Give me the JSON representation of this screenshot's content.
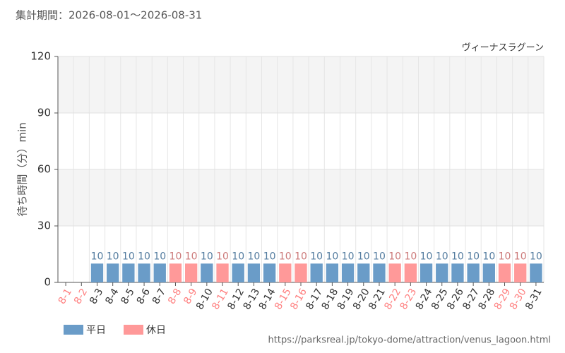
{
  "chart_data": {
    "type": "bar",
    "title": "集計期間：2026-08-01〜2026-08-31",
    "subtitle": "ヴィーナスラグーン",
    "y_label": "待ち時間（分）min",
    "source": "https://parksreal.jp/tokyo-dome/attraction/venus_lagoon.html",
    "categories": [
      "8-1",
      "8-2",
      "8-3",
      "8-4",
      "8-5",
      "8-6",
      "8-7",
      "8-8",
      "8-9",
      "8-10",
      "8-11",
      "8-12",
      "8-13",
      "8-14",
      "8-15",
      "8-16",
      "8-17",
      "8-18",
      "8-19",
      "8-20",
      "8-21",
      "8-22",
      "8-23",
      "8-24",
      "8-25",
      "8-26",
      "8-27",
      "8-28",
      "8-29",
      "8-30",
      "8-31"
    ],
    "label_colors": [
      "#ff8080",
      "#ff8080",
      "#333333",
      "#333333",
      "#333333",
      "#333333",
      "#333333",
      "#ff8080",
      "#ff8080",
      "#333333",
      "#ff8080",
      "#333333",
      "#333333",
      "#333333",
      "#ff8080",
      "#ff8080",
      "#333333",
      "#333333",
      "#333333",
      "#333333",
      "#333333",
      "#ff8080",
      "#ff8080",
      "#333333",
      "#333333",
      "#333333",
      "#333333",
      "#333333",
      "#ff8080",
      "#ff8080",
      "#333333"
    ],
    "series": [
      {
        "name": "平日",
        "color": "#6a9cc8",
        "values": [
          null,
          null,
          10,
          10,
          10,
          10,
          10,
          null,
          null,
          10,
          null,
          10,
          10,
          10,
          null,
          null,
          10,
          10,
          10,
          10,
          10,
          null,
          null,
          10,
          10,
          10,
          10,
          10,
          null,
          null,
          10
        ]
      },
      {
        "name": "休日",
        "color": "#ff9999",
        "values": [
          null,
          null,
          null,
          null,
          null,
          null,
          null,
          10,
          10,
          null,
          10,
          null,
          null,
          null,
          10,
          10,
          null,
          null,
          null,
          null,
          null,
          10,
          10,
          null,
          null,
          null,
          null,
          null,
          10,
          10,
          null
        ]
      }
    ],
    "ylim": [
      0,
      120
    ],
    "yticks": [
      0,
      30,
      60,
      90,
      120
    ],
    "grid": true
  }
}
